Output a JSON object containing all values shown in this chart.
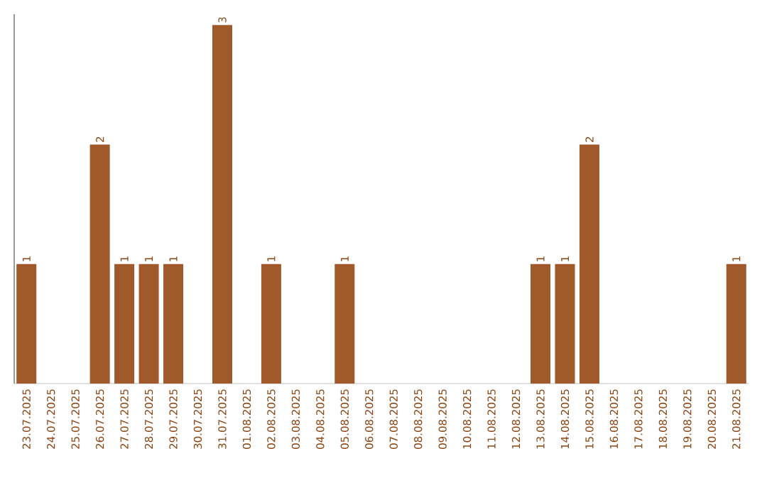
{
  "chart_data": {
    "type": "bar",
    "categories": [
      "23.07.2025",
      "24.07.2025",
      "25.07.2025",
      "26.07.2025",
      "27.07.2025",
      "28.07.2025",
      "29.07.2025",
      "30.07.2025",
      "31.07.2025",
      "01.08.2025",
      "02.08.2025",
      "03.08.2025",
      "04.08.2025",
      "05.08.2025",
      "06.08.2025",
      "07.08.2025",
      "08.08.2025",
      "09.08.2025",
      "10.08.2025",
      "11.08.2025",
      "12.08.2025",
      "13.08.2025",
      "14.08.2025",
      "15.08.2025",
      "16.08.2025",
      "17.08.2025",
      "18.08.2025",
      "19.08.2025",
      "20.08.2025",
      "21.08.2025"
    ],
    "values": [
      1,
      0,
      0,
      2,
      1,
      1,
      1,
      0,
      3,
      0,
      1,
      0,
      0,
      1,
      0,
      0,
      0,
      0,
      0,
      0,
      0,
      1,
      1,
      2,
      0,
      0,
      0,
      0,
      0,
      1
    ],
    "value_labels": [
      "1",
      null,
      null,
      "2",
      "1",
      "1",
      "1",
      null,
      "3",
      null,
      "1",
      null,
      null,
      "1",
      null,
      null,
      null,
      null,
      null,
      null,
      null,
      "1",
      "1",
      "2",
      null,
      null,
      null,
      null,
      null,
      "1"
    ],
    "color": "#a0592a"
  }
}
